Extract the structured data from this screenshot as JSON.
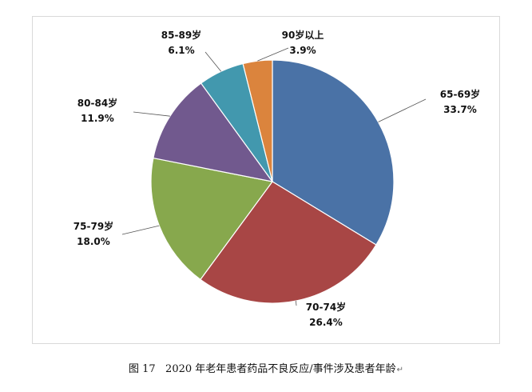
{
  "chart_data": {
    "type": "pie",
    "title": "",
    "slices": [
      {
        "label": "65-69岁",
        "value": 33.7,
        "value_label": "33.7%",
        "color": "#4a72a6"
      },
      {
        "label": "70-74岁",
        "value": 26.4,
        "value_label": "26.4%",
        "color": "#a84645"
      },
      {
        "label": "75-79岁",
        "value": 18.0,
        "value_label": "18.0%",
        "color": "#87a84d"
      },
      {
        "label": "80-84岁",
        "value": 11.9,
        "value_label": "11.9%",
        "color": "#71598e"
      },
      {
        "label": "85-89岁",
        "value": 6.1,
        "value_label": "6.1%",
        "color": "#4298ae"
      },
      {
        "label": "90岁以上",
        "value": 3.9,
        "value_label": "3.9%",
        "color": "#db843d"
      }
    ],
    "start": "12 o'clock",
    "direction": "clockwise",
    "legend": "none"
  },
  "caption": {
    "figure_number": "图 17",
    "text": "2020 年老年患者药品不良反应/事件涉及患者年龄",
    "return_mark": "↵"
  }
}
